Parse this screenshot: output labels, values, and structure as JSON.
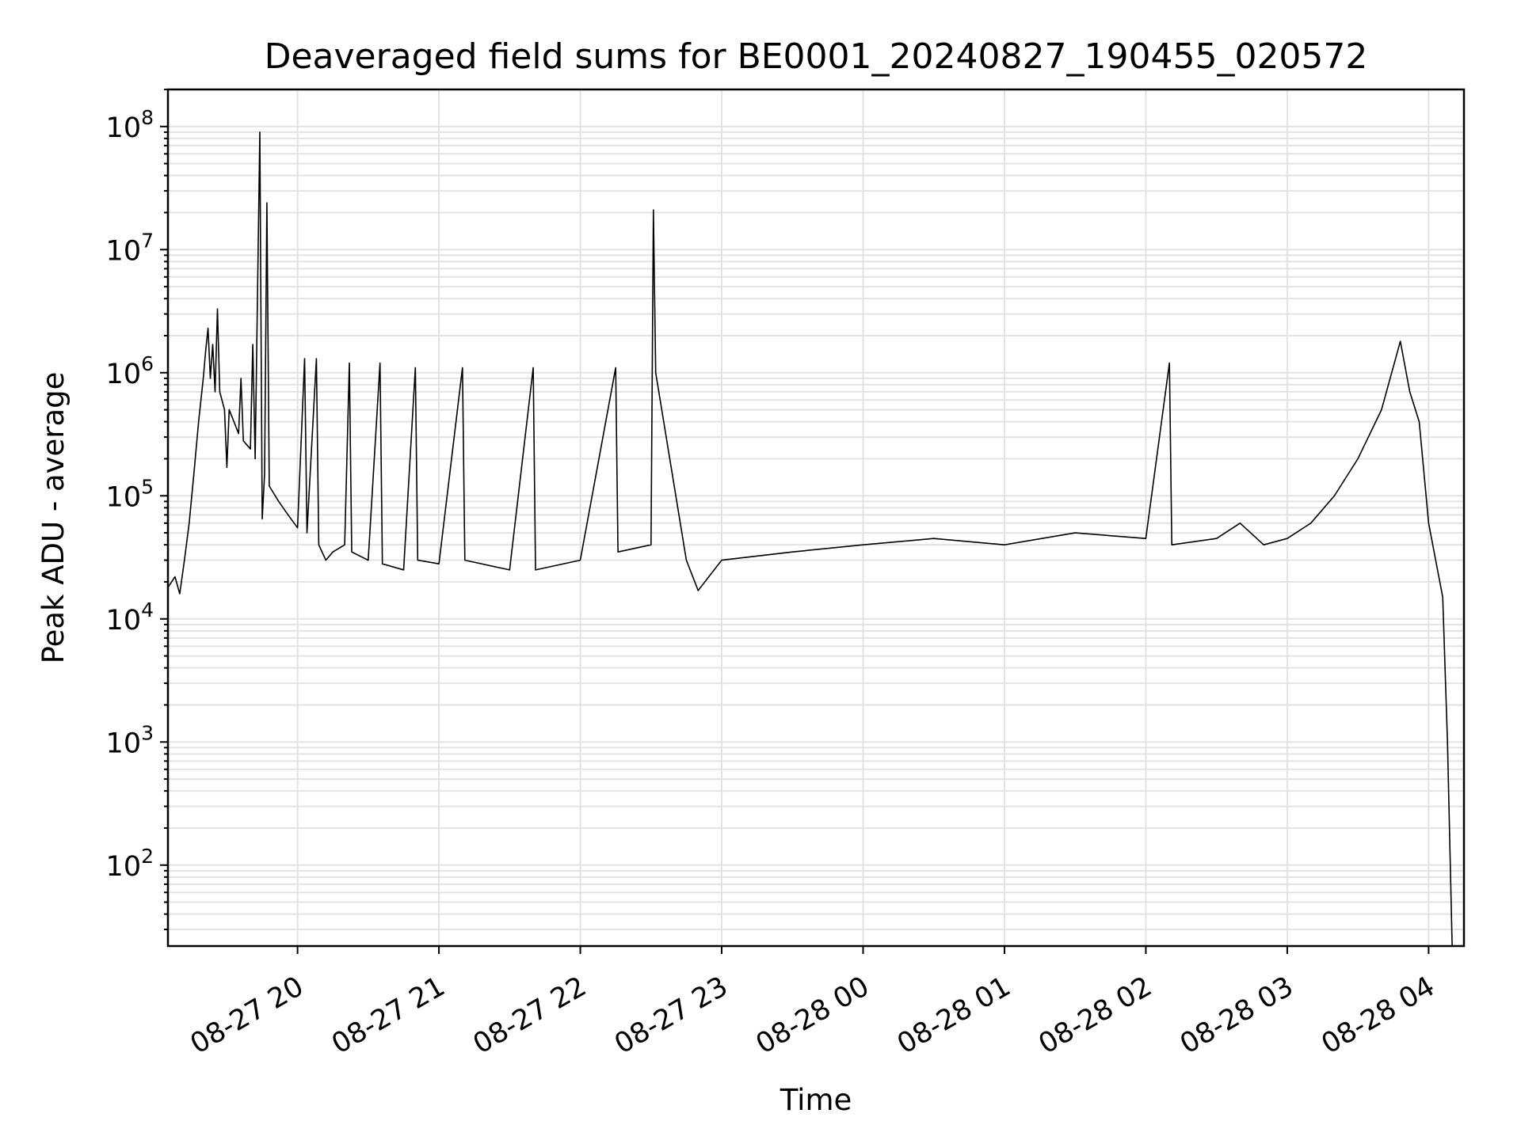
{
  "chart_data": {
    "type": "line",
    "title": "Deaveraged field sums for BE0001_20240827_190455_020572",
    "xlabel": "Time",
    "ylabel": "Peak ADU - average",
    "yscale": "log",
    "ylim": [
      22,
      200000000
    ],
    "xlim": [
      "2024-08-27 19:05",
      "2024-08-28 04:15"
    ],
    "grid": true,
    "x_ticks": [
      {
        "t": "2024-08-27 20:00",
        "label": "08-27 20"
      },
      {
        "t": "2024-08-27 21:00",
        "label": "08-27 21"
      },
      {
        "t": "2024-08-27 22:00",
        "label": "08-27 22"
      },
      {
        "t": "2024-08-27 23:00",
        "label": "08-27 23"
      },
      {
        "t": "2024-08-28 00:00",
        "label": "08-28 00"
      },
      {
        "t": "2024-08-28 01:00",
        "label": "08-28 01"
      },
      {
        "t": "2024-08-28 02:00",
        "label": "08-28 02"
      },
      {
        "t": "2024-08-28 03:00",
        "label": "08-28 03"
      },
      {
        "t": "2024-08-28 04:00",
        "label": "08-28 04"
      }
    ],
    "y_ticks": [
      {
        "value": 100,
        "base": "10",
        "exp": "2"
      },
      {
        "value": 1000,
        "base": "10",
        "exp": "3"
      },
      {
        "value": 10000,
        "base": "10",
        "exp": "4"
      },
      {
        "value": 100000,
        "base": "10",
        "exp": "5"
      },
      {
        "value": 1000000,
        "base": "10",
        "exp": "6"
      },
      {
        "value": 10000000,
        "base": "10",
        "exp": "7"
      },
      {
        "value": 100000000,
        "base": "10",
        "exp": "8"
      }
    ],
    "series": [
      {
        "color": "#000000",
        "points": [
          [
            "2024-08-27 19:05",
            18000
          ],
          [
            "2024-08-27 19:08",
            22000
          ],
          [
            "2024-08-27 19:10",
            16000
          ],
          [
            "2024-08-27 19:12",
            30000
          ],
          [
            "2024-08-27 19:14",
            60000
          ],
          [
            "2024-08-27 19:16",
            150000
          ],
          [
            "2024-08-27 19:18",
            400000
          ],
          [
            "2024-08-27 19:20",
            900000
          ],
          [
            "2024-08-27 19:21",
            1500000
          ],
          [
            "2024-08-27 19:22",
            2300000
          ],
          [
            "2024-08-27 19:23",
            900000
          ],
          [
            "2024-08-27 19:24",
            1700000
          ],
          [
            "2024-08-27 19:25",
            700000
          ],
          [
            "2024-08-27 19:26",
            3300000
          ],
          [
            "2024-08-27 19:27",
            700000
          ],
          [
            "2024-08-27 19:29",
            500000
          ],
          [
            "2024-08-27 19:30",
            170000
          ],
          [
            "2024-08-27 19:31",
            500000
          ],
          [
            "2024-08-27 19:33",
            400000
          ],
          [
            "2024-08-27 19:35",
            320000
          ],
          [
            "2024-08-27 19:36",
            900000
          ],
          [
            "2024-08-27 19:37",
            280000
          ],
          [
            "2024-08-27 19:40",
            240000
          ],
          [
            "2024-08-27 19:41",
            1700000
          ],
          [
            "2024-08-27 19:42",
            200000
          ],
          [
            "2024-08-27 19:44",
            90000000
          ],
          [
            "2024-08-27 19:45",
            65000
          ],
          [
            "2024-08-27 19:46",
            150000
          ],
          [
            "2024-08-27 19:47",
            24000000
          ],
          [
            "2024-08-27 19:48",
            120000
          ],
          [
            "2024-08-27 19:52",
            90000
          ],
          [
            "2024-08-27 19:56",
            70000
          ],
          [
            "2024-08-27 20:00",
            55000
          ],
          [
            "2024-08-27 20:03",
            1300000
          ],
          [
            "2024-08-27 20:04",
            50000
          ],
          [
            "2024-08-27 20:08",
            1300000
          ],
          [
            "2024-08-27 20:09",
            40000
          ],
          [
            "2024-08-27 20:12",
            30000
          ],
          [
            "2024-08-27 20:15",
            35000
          ],
          [
            "2024-08-27 20:20",
            40000
          ],
          [
            "2024-08-27 20:22",
            1200000
          ],
          [
            "2024-08-27 20:23",
            35000
          ],
          [
            "2024-08-27 20:30",
            30000
          ],
          [
            "2024-08-27 20:35",
            1200000
          ],
          [
            "2024-08-27 20:36",
            28000
          ],
          [
            "2024-08-27 20:45",
            25000
          ],
          [
            "2024-08-27 20:50",
            1100000
          ],
          [
            "2024-08-27 20:51",
            30000
          ],
          [
            "2024-08-27 21:00",
            28000
          ],
          [
            "2024-08-27 21:10",
            1100000
          ],
          [
            "2024-08-27 21:11",
            30000
          ],
          [
            "2024-08-27 21:30",
            25000
          ],
          [
            "2024-08-27 21:40",
            1100000
          ],
          [
            "2024-08-27 21:41",
            25000
          ],
          [
            "2024-08-27 22:00",
            30000
          ],
          [
            "2024-08-27 22:15",
            1100000
          ],
          [
            "2024-08-27 22:16",
            35000
          ],
          [
            "2024-08-27 22:30",
            40000
          ],
          [
            "2024-08-27 22:31",
            21000000
          ],
          [
            "2024-08-27 22:32",
            1000000
          ],
          [
            "2024-08-27 22:45",
            30000
          ],
          [
            "2024-08-27 22:50",
            17000
          ],
          [
            "2024-08-27 23:00",
            30000
          ],
          [
            "2024-08-27 23:30",
            35000
          ],
          [
            "2024-08-28 00:00",
            40000
          ],
          [
            "2024-08-28 00:30",
            45000
          ],
          [
            "2024-08-28 01:00",
            40000
          ],
          [
            "2024-08-28 01:30",
            50000
          ],
          [
            "2024-08-28 02:00",
            45000
          ],
          [
            "2024-08-28 02:10",
            1200000
          ],
          [
            "2024-08-28 02:11",
            40000
          ],
          [
            "2024-08-28 02:30",
            45000
          ],
          [
            "2024-08-28 02:40",
            60000
          ],
          [
            "2024-08-28 02:50",
            40000
          ],
          [
            "2024-08-28 03:00",
            45000
          ],
          [
            "2024-08-28 03:10",
            60000
          ],
          [
            "2024-08-28 03:20",
            100000
          ],
          [
            "2024-08-28 03:30",
            200000
          ],
          [
            "2024-08-28 03:40",
            500000
          ],
          [
            "2024-08-28 03:48",
            1800000
          ],
          [
            "2024-08-28 03:52",
            700000
          ],
          [
            "2024-08-28 03:56",
            400000
          ],
          [
            "2024-08-28 04:00",
            60000
          ],
          [
            "2024-08-28 04:03",
            30000
          ],
          [
            "2024-08-28 04:06",
            15000
          ],
          [
            "2024-08-28 04:08",
            1000
          ],
          [
            "2024-08-28 04:10",
            22
          ]
        ]
      }
    ]
  }
}
